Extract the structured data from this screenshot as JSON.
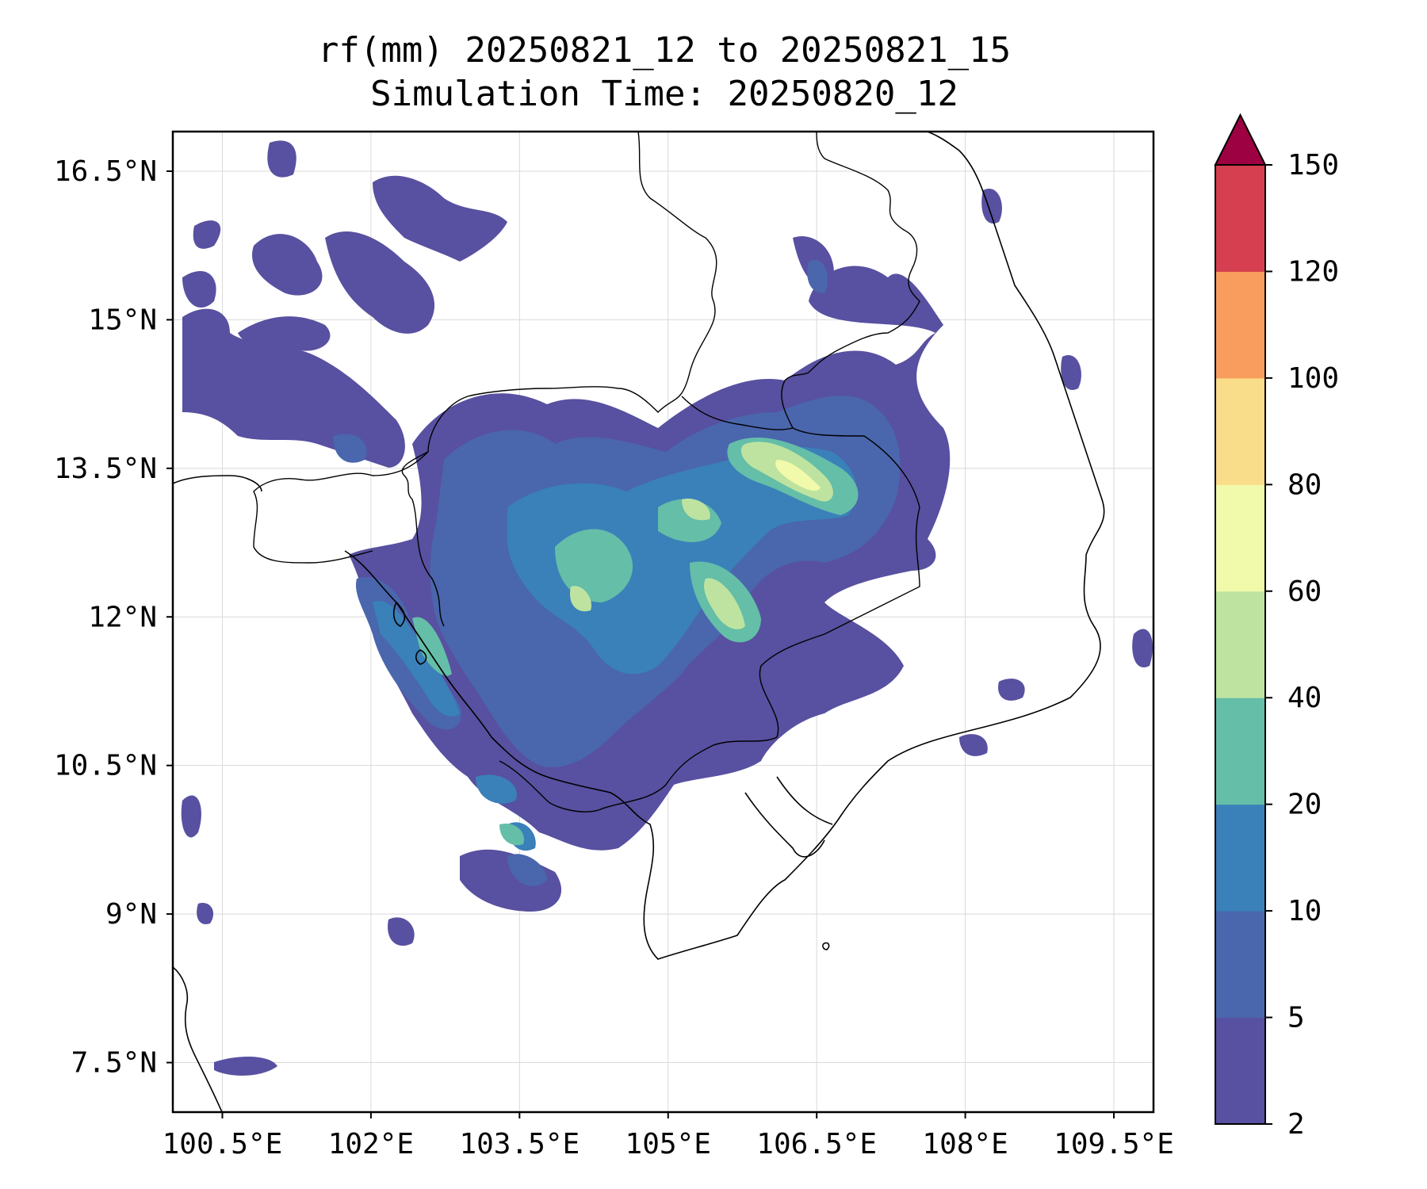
{
  "title": {
    "line1": "rf(mm) 20250821_12 to 20250821_15",
    "line2": "Simulation Time: 20250820_12"
  },
  "map": {
    "lon_range": [
      100.0,
      109.9
    ],
    "lat_range": [
      7.0,
      16.9
    ],
    "x_ticks": [
      {
        "value": 100.5,
        "label": "100.5°E"
      },
      {
        "value": 102.0,
        "label": "102°E"
      },
      {
        "value": 103.5,
        "label": "103.5°E"
      },
      {
        "value": 105.0,
        "label": "105°E"
      },
      {
        "value": 106.5,
        "label": "106.5°E"
      },
      {
        "value": 108.0,
        "label": "108°E"
      },
      {
        "value": 109.5,
        "label": "109.5°E"
      }
    ],
    "y_ticks": [
      {
        "value": 16.5,
        "label": "16.5°N"
      },
      {
        "value": 15.0,
        "label": "15°N"
      },
      {
        "value": 13.5,
        "label": "13.5°N"
      },
      {
        "value": 12.0,
        "label": "12°N"
      },
      {
        "value": 10.5,
        "label": "10.5°N"
      },
      {
        "value": 9.0,
        "label": "9°N"
      },
      {
        "value": 7.5,
        "label": "7.5°N"
      }
    ],
    "grid": true
  },
  "colorbar": {
    "levels": [
      "2",
      "5",
      "10",
      "20",
      "40",
      "60",
      "80",
      "100",
      "120",
      "150"
    ],
    "colors": [
      "#5850a0",
      "#4a66ad",
      "#3a80b9",
      "#64bea8",
      "#bee3a0",
      "#f1f9aa",
      "#fadd8a",
      "#f89d5d",
      "#d53f4f",
      "#9e0142"
    ],
    "extend": "max"
  }
}
